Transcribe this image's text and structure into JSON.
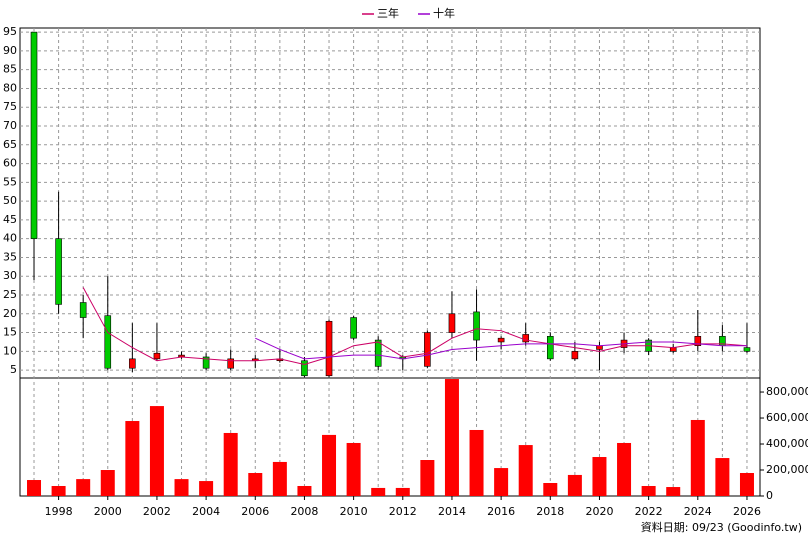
{
  "chart_data": {
    "type": "candlestick",
    "x": [
      1997,
      1998,
      1999,
      2000,
      2001,
      2002,
      2003,
      2004,
      2005,
      2006,
      2007,
      2008,
      2009,
      2010,
      2011,
      2012,
      2013,
      2014,
      2015,
      2016,
      2017,
      2018,
      2019,
      2020,
      2021,
      2022,
      2023,
      2024,
      2025,
      2026
    ],
    "open": [
      95,
      40,
      23,
      19.5,
      5.5,
      8,
      8.5,
      8.5,
      5.5,
      7.5,
      7.5,
      7.5,
      3.5,
      19,
      13,
      8.5,
      6,
      15,
      20.5,
      12.5,
      12.5,
      14,
      8,
      10.5,
      11,
      13,
      10,
      11.5,
      14,
      11
    ],
    "high": [
      95,
      52.5,
      25,
      30,
      17.5,
      17.5,
      10,
      9.5,
      10.5,
      9,
      10.5,
      8.5,
      18.5,
      19.5,
      14,
      9,
      15.5,
      26,
      26.5,
      14,
      17.5,
      15,
      12.5,
      12.5,
      15,
      13.5,
      12,
      21,
      17,
      17.5
    ],
    "low": [
      29,
      20,
      13.5,
      5,
      4.5,
      7.5,
      8,
      5,
      5,
      5.5,
      7,
      3,
      3,
      13,
      5,
      5,
      5.5,
      13.5,
      7.5,
      10.5,
      11.5,
      7.5,
      7.5,
      5,
      9.5,
      9,
      9.5,
      10,
      10,
      9.5
    ],
    "close": [
      40,
      22.5,
      19,
      5.5,
      8,
      9.5,
      9,
      5.5,
      8,
      8,
      8,
      3.5,
      18,
      13.5,
      6,
      8,
      15,
      20,
      13,
      13.5,
      14.5,
      8,
      10,
      11.5,
      13,
      10,
      11,
      14,
      11.5,
      10
    ],
    "volume": [
      123000,
      77000,
      130000,
      200000,
      577000,
      692000,
      130000,
      115000,
      485000,
      177000,
      262000,
      77000,
      470000,
      408000,
      62000,
      62000,
      277000,
      900000,
      508000,
      215000,
      392000,
      100000,
      162000,
      300000,
      408000,
      77000,
      69000,
      585000,
      292000,
      177000
    ],
    "series": [
      {
        "name": "三年",
        "color": "#cc0066",
        "values": [
          null,
          null,
          27,
          15,
          11,
          7.5,
          8.5,
          8,
          7.5,
          7.5,
          8,
          6.5,
          8.5,
          11.5,
          12.5,
          8.5,
          9.5,
          13.5,
          16,
          15.5,
          13,
          12,
          11,
          10,
          11.5,
          11.5,
          11,
          12,
          12,
          11.5
        ]
      },
      {
        "name": "十年",
        "color": "#9900cc",
        "values": [
          null,
          null,
          null,
          null,
          null,
          null,
          null,
          null,
          null,
          13.5,
          10.5,
          8,
          8.5,
          9,
          9,
          8,
          9,
          10.5,
          11,
          11.5,
          12,
          12,
          12,
          11.5,
          12,
          12.5,
          12.5,
          12,
          11.5,
          11.5
        ]
      }
    ],
    "up_color": "#ff0000",
    "down_color": "#00cc00",
    "volume_color": "#ff0000",
    "xlim": [
      1996.43,
      2026.53
    ],
    "xticks": [
      1998,
      2000,
      2002,
      2004,
      2006,
      2008,
      2010,
      2012,
      2014,
      2016,
      2018,
      2020,
      2022,
      2024,
      2026
    ],
    "ylim": [
      2.9,
      96.1
    ],
    "yticks": [
      5,
      10,
      15,
      20,
      25,
      30,
      35,
      40,
      45,
      50,
      55,
      60,
      65,
      70,
      75,
      80,
      85,
      90,
      95
    ],
    "y2lim": [
      0,
      908000
    ],
    "y2ticks": [
      0,
      {
        "value": 200000,
        "label": "200,000"
      },
      {
        "value": 400000,
        "label": "400,000"
      },
      {
        "value": 600000,
        "label": "600,000"
      },
      {
        "value": 800000,
        "label": "800,000"
      }
    ],
    "grid": true,
    "footer": "資料日期: 09/23 (Goodinfo.tw)"
  }
}
